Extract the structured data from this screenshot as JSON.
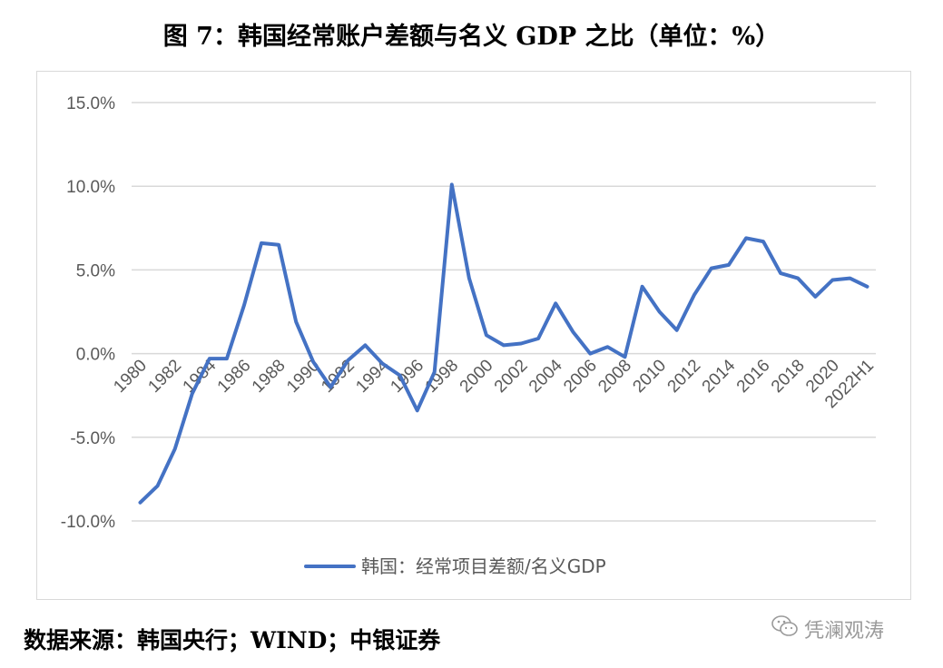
{
  "title": "图 7：韩国经常账户差额与名义 GDP 之比（单位：%）",
  "source": "数据来源：韩国央行；WIND；中银证券",
  "watermark": {
    "text": "凭澜观涛",
    "icon": "wechat-icon"
  },
  "chart_data": {
    "type": "line",
    "title": "",
    "xlabel": "",
    "ylabel": "",
    "ylim": [
      -10,
      15
    ],
    "ytick_values": [
      -10,
      -5,
      0,
      5,
      10,
      15
    ],
    "ytick_labels": [
      "-10.0%",
      "-5.0%",
      "0.0%",
      "5.0%",
      "10.0%",
      "15.0%"
    ],
    "grid": true,
    "legend": "bottom",
    "x": [
      "1980",
      "1981",
      "1982",
      "1983",
      "1984",
      "1985",
      "1986",
      "1987",
      "1988",
      "1989",
      "1990",
      "1991",
      "1992",
      "1993",
      "1994",
      "1995",
      "1996",
      "1997",
      "1998",
      "1999",
      "2000",
      "2001",
      "2002",
      "2003",
      "2004",
      "2005",
      "2006",
      "2007",
      "2008",
      "2009",
      "2010",
      "2011",
      "2012",
      "2013",
      "2014",
      "2015",
      "2016",
      "2017",
      "2018",
      "2019",
      "2020",
      "2021",
      "2022H1"
    ],
    "xtick_labels": [
      "1980",
      "1982",
      "1984",
      "1986",
      "1988",
      "1990",
      "1992",
      "1994",
      "1996",
      "1998",
      "2000",
      "2002",
      "2004",
      "2006",
      "2008",
      "2010",
      "2012",
      "2014",
      "2016",
      "2018",
      "2020",
      "2022H1"
    ],
    "series": [
      {
        "name": "韩国：经常项目差额/名义GDP",
        "color": "#4472c4",
        "values": [
          -8.9,
          -7.9,
          -5.7,
          -2.4,
          -0.3,
          -0.3,
          2.9,
          6.6,
          6.5,
          1.9,
          -0.5,
          -2.0,
          -0.4,
          0.5,
          -0.6,
          -1.3,
          -3.4,
          -1.1,
          10.1,
          4.5,
          1.1,
          0.5,
          0.6,
          0.9,
          3.0,
          1.3,
          0.0,
          0.4,
          -0.2,
          4.0,
          2.5,
          1.4,
          3.5,
          5.1,
          5.3,
          6.9,
          6.7,
          4.8,
          4.5,
          3.4,
          4.4,
          4.5,
          4.0
        ]
      }
    ]
  }
}
